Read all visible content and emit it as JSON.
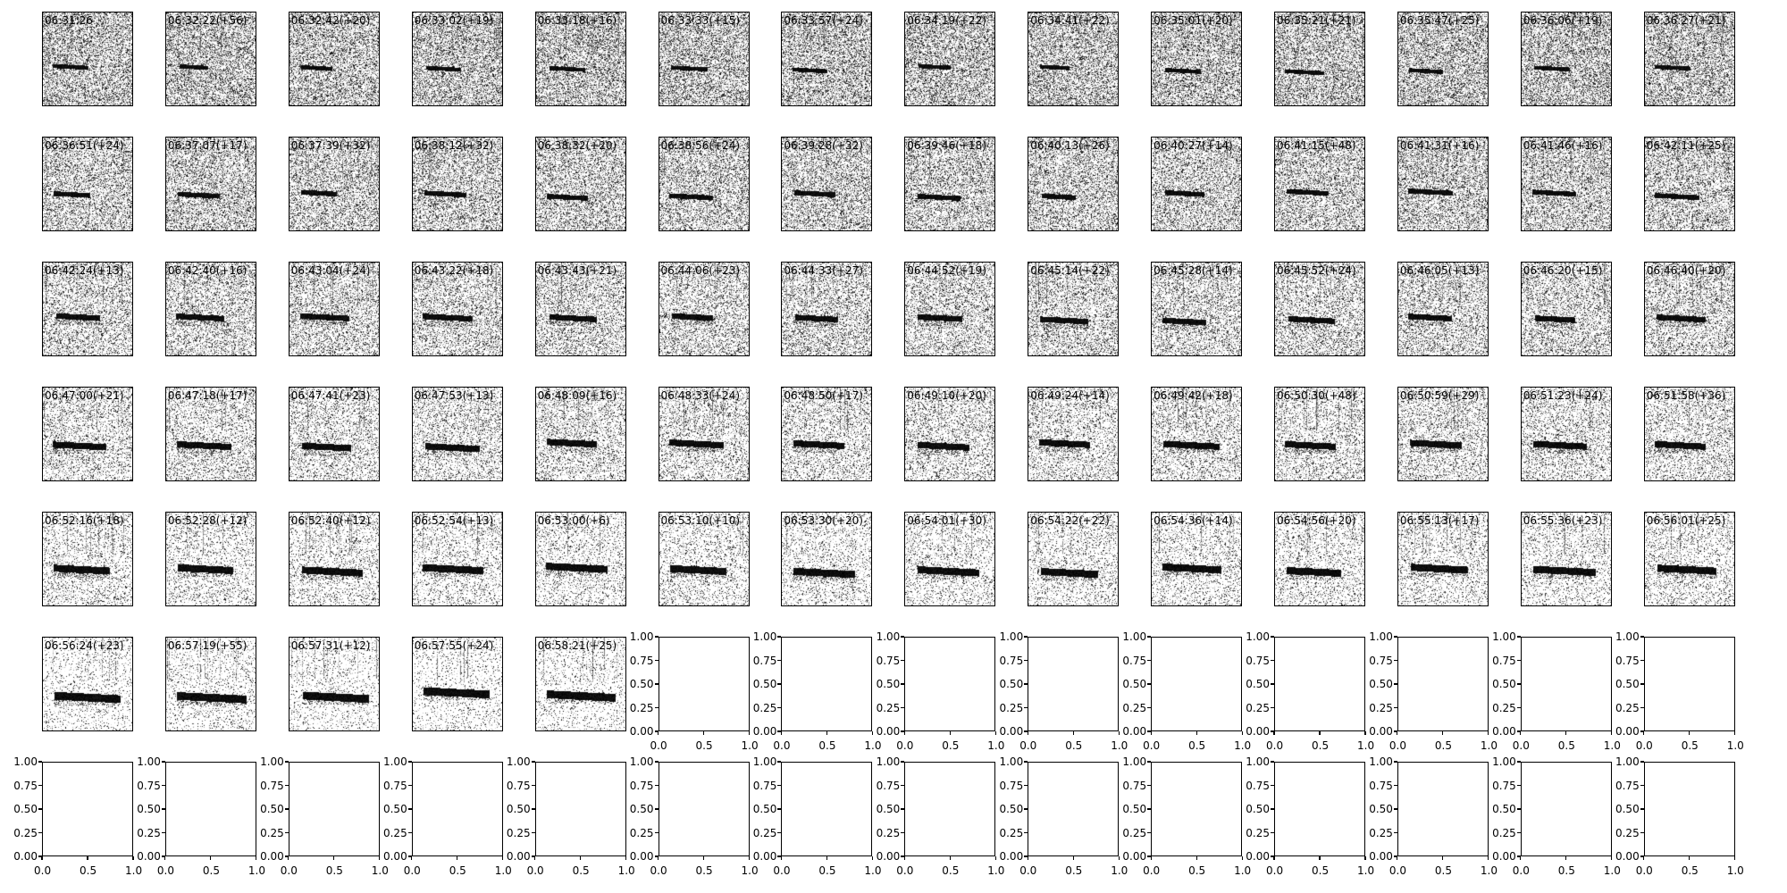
{
  "chart_data": {
    "type": "heatmap",
    "description_of_grid": {
      "rows": 7,
      "cols": 14
    },
    "colormap": "gray_r",
    "panels": [
      "06:31:26",
      "06:32:22(+56)",
      "06:32:42(+20)",
      "06:33:02(+19)",
      "06:33:18(+16)",
      "06:33:33(+15)",
      "06:33:57(+24)",
      "06:34:19(+22)",
      "06:34:41(+22)",
      "06:35:01(+20)",
      "06:35:21(+21)",
      "06:35:47(+25)",
      "06:36:06(+19)",
      "06:36:27(+21)",
      "06:36:51(+24)",
      "06:37:07(+17)",
      "06:37:39(+32)",
      "06:38:12(+32)",
      "06:38:32(+20)",
      "06:38:56(+24)",
      "06:39:28(+32)",
      "06:39:46(+18)",
      "06:40:13(+26)",
      "06:40:27(+14)",
      "06:41:15(+48)",
      "06:41:31(+16)",
      "06:41:46(+16)",
      "06:42:11(+25)",
      "06:42:24(+13)",
      "06:42:40(+16)",
      "06:43:04(+24)",
      "06:43:22(+18)",
      "06:43:43(+21)",
      "06:44:06(+23)",
      "06:44:33(+27)",
      "06:44:52(+19)",
      "06:45:14(+22)",
      "06:45:28(+14)",
      "06:45:52(+24)",
      "06:46:05(+13)",
      "06:46:20(+15)",
      "06:46:40(+20)",
      "06:47:00(+21)",
      "06:47:18(+17)",
      "06:47:41(+23)",
      "06:47:53(+13)",
      "06:48:09(+16)",
      "06:48:33(+24)",
      "06:48:50(+17)",
      "06:49:10(+20)",
      "06:49:24(+14)",
      "06:49:42(+18)",
      "06:50:30(+48)",
      "06:50:59(+29)",
      "06:51:23(+24)",
      "06:51:58(+36)",
      "06:52:16(+18)",
      "06:52:28(+12)",
      "06:52:40(+12)",
      "06:52:54(+13)",
      "06:53:00(+6)",
      "06:53:10(+10)",
      "06:53:30(+20)",
      "06:54:01(+30)",
      "06:54:22(+22)",
      "06:54:36(+14)",
      "06:54:56(+20)",
      "06:55:13(+17)",
      "06:55:36(+23)",
      "06:56:01(+25)",
      "06:56:24(+23)",
      "06:57:19(+55)",
      "06:57:31(+12)",
      "06:57:55(+24)",
      "06:58:21(+25)"
    ],
    "empty_axes": {
      "xlim": [
        0,
        1
      ],
      "ylim": [
        0,
        1
      ],
      "xticks": [
        "0.0",
        "0.5",
        "1.0"
      ],
      "yticks": [
        "0.00",
        "0.25",
        "0.50",
        "0.75",
        "1.00"
      ]
    }
  }
}
